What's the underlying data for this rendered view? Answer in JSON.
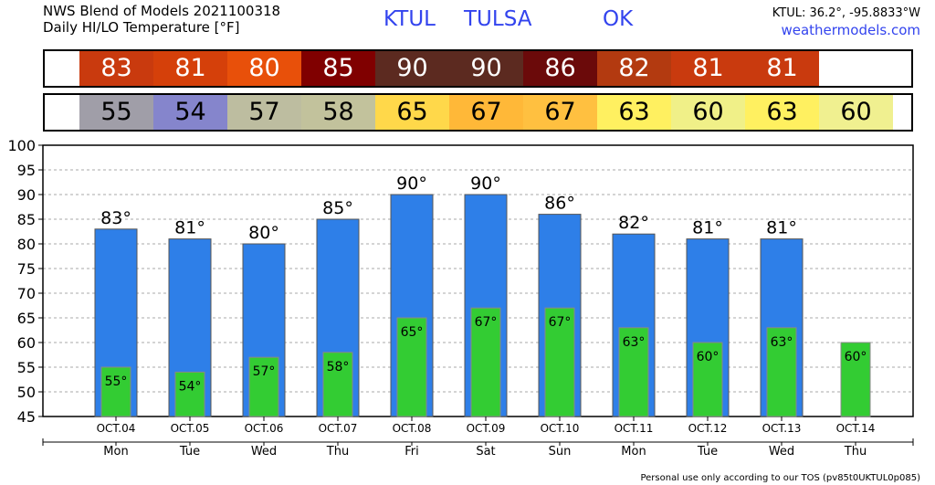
{
  "header": {
    "title": "NWS Blend of Models 2021100318",
    "subtitle": "Daily HI/LO Temperature [°F]",
    "station": "KTUL",
    "city": "TULSA",
    "state": "OK",
    "coords": "KTUL: 36.2°, -95.8833°W",
    "site": "weathermodels.com"
  },
  "footer": "Personal use only according to our TOS (pv85t0UKTUL0p085)",
  "colors": {
    "high_bar": "#2e7fe8",
    "low_bar": "#33cc33",
    "high_cells": [
      "#c93a0e",
      "#d5400a",
      "#e8500a",
      "#800000",
      "#5c2a20",
      "#5c2a20",
      "#6b0a0a",
      "#b33a10",
      "#c93a0e",
      "#c93a0e"
    ],
    "low_cells": [
      "#a09ea8",
      "#8585cc",
      "#bdbda0",
      "#c2c29c",
      "#ffd84a",
      "#ffb838",
      "#ffc040",
      "#fff060",
      "#f0f088",
      "#fff060",
      "#f0f090"
    ]
  },
  "chart_data": {
    "type": "bar",
    "title": "NWS Blend of Models 2021100318",
    "ylabel": "Daily HI/LO Temperature [°F]",
    "ylim": [
      45,
      100
    ],
    "yticks": [
      45,
      50,
      55,
      60,
      65,
      70,
      75,
      80,
      85,
      90,
      95,
      100
    ],
    "grid": true,
    "categories": [
      "OCT.04",
      "OCT.05",
      "OCT.06",
      "OCT.07",
      "OCT.08",
      "OCT.09",
      "OCT.10",
      "OCT.11",
      "OCT.12",
      "OCT.13",
      "OCT.14"
    ],
    "weekdays": [
      "Mon",
      "Tue",
      "Wed",
      "Thu",
      "Fri",
      "Sat",
      "Sun",
      "Mon",
      "Tue",
      "Wed",
      "Thu"
    ],
    "series": [
      {
        "values": [
          83,
          81,
          80,
          85,
          90,
          90,
          86,
          82,
          81,
          81,
          null
        ]
      },
      {
        "values": [
          55,
          54,
          57,
          58,
          65,
          67,
          67,
          63,
          60,
          63,
          60
        ]
      }
    ],
    "high_labels": [
      "83°",
      "81°",
      "80°",
      "85°",
      "90°",
      "90°",
      "86°",
      "82°",
      "81°",
      "81°"
    ],
    "low_labels": [
      "55°",
      "54°",
      "57°",
      "58°",
      "65°",
      "67°",
      "67°",
      "63°",
      "60°",
      "63°",
      "60°"
    ],
    "high_strip": [
      "83",
      "81",
      "80",
      "85",
      "90",
      "90",
      "86",
      "82",
      "81",
      "81"
    ],
    "low_strip": [
      "55",
      "54",
      "57",
      "58",
      "65",
      "67",
      "67",
      "63",
      "60",
      "63",
      "60"
    ]
  }
}
